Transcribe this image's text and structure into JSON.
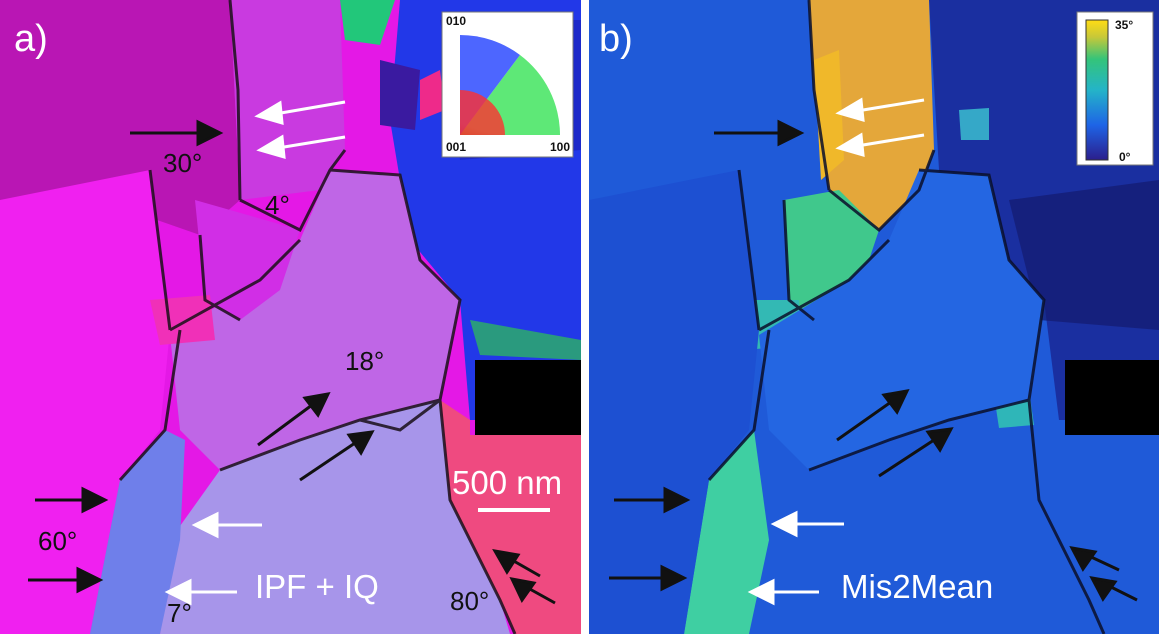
{
  "panel_a": {
    "letter": "a)",
    "caption": "IPF + IQ",
    "angles": [
      "30°",
      "4°",
      "18°",
      "60°",
      "7°",
      "80°"
    ],
    "scale_bar": "500 nm",
    "ipf_key": {
      "top": "010",
      "bottom_left": "001",
      "bottom_right": "100"
    }
  },
  "panel_b": {
    "letter": "b)",
    "caption": "Mis2Mean",
    "colorbar": {
      "max": "35°",
      "min": "0°"
    }
  },
  "colors": {
    "magenta": "#e418e6",
    "violet": "#bf66e6",
    "lavender": "#a795ea",
    "pink_red": "#ef4a80",
    "blue": "#2238e8",
    "map_blue": "#1f5ad8",
    "map_cyan": "#2ba7c9",
    "map_green": "#40cf8a",
    "map_orange": "#e4a73a"
  }
}
